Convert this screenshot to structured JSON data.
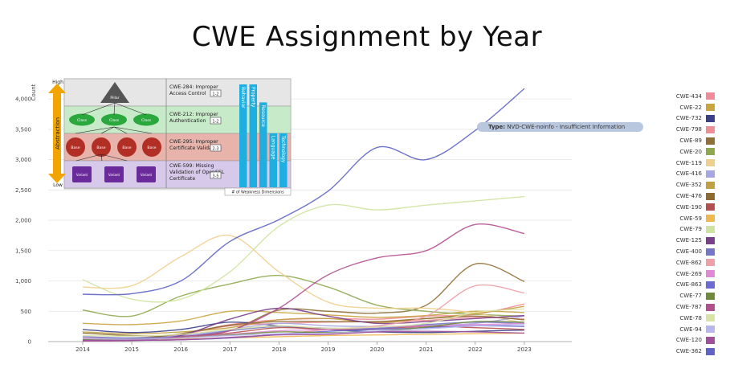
{
  "chart_data": {
    "type": "line",
    "title": "CWE Assignment by Year",
    "ylabel": "Count",
    "xlabel": "",
    "x": [
      2014,
      2015,
      2016,
      2017,
      2018,
      2019,
      2020,
      2021,
      2022,
      2023
    ],
    "ylim": [
      0,
      4200
    ],
    "yticks": [
      "0",
      "500",
      "1,000",
      "1,500",
      "2,000",
      "2,500",
      "3,000",
      "3,500",
      "4,000"
    ],
    "ytick_values": [
      0,
      500,
      1000,
      1500,
      2000,
      2500,
      3000,
      3500,
      4000
    ],
    "grid": true,
    "legend": "right",
    "tooltip": {
      "label": "Type:",
      "value": "NVD-CWE-noinfo - Insufficient Information"
    },
    "series": [
      {
        "name": "CWE-434",
        "color": "#f08a98",
        "values": [
          60,
          60,
          120,
          280,
          360,
          380,
          370,
          420,
          450,
          620
        ]
      },
      {
        "name": "CWE-22",
        "color": "#c9a43f",
        "values": [
          300,
          280,
          340,
          500,
          480,
          440,
          400,
          430,
          500,
          480
        ]
      },
      {
        "name": "CWE-732",
        "color": "#3a3f86",
        "values": [
          200,
          150,
          200,
          320,
          260,
          200,
          160,
          150,
          170,
          190
        ]
      },
      {
        "name": "CWE-798",
        "color": "#ee8f95",
        "values": [
          40,
          50,
          120,
          260,
          300,
          320,
          330,
          350,
          400,
          370
        ]
      },
      {
        "name": "CWE-89",
        "color": "#8f6f35",
        "values": [
          140,
          100,
          90,
          180,
          520,
          500,
          470,
          600,
          1280,
          990
        ]
      },
      {
        "name": "CWE-20",
        "color": "#8ea84f",
        "values": [
          520,
          420,
          750,
          950,
          1090,
          900,
          600,
          500,
          450,
          420
        ]
      },
      {
        "name": "CWE-119",
        "color": "#efcf8d",
        "values": [
          900,
          920,
          1400,
          1750,
          1150,
          650,
          550,
          550,
          470,
          300
        ]
      },
      {
        "name": "CWE-416",
        "color": "#a6a6e4",
        "values": [
          40,
          60,
          100,
          200,
          300,
          260,
          250,
          270,
          300,
          420
        ]
      },
      {
        "name": "CWE-352",
        "color": "#c2a040",
        "values": [
          160,
          130,
          160,
          230,
          360,
          380,
          310,
          380,
          460,
          580
        ]
      },
      {
        "name": "CWE-476",
        "color": "#8c6a30",
        "values": [
          30,
          40,
          130,
          270,
          330,
          330,
          330,
          380,
          420,
          360
        ]
      },
      {
        "name": "CWE-190",
        "color": "#b54f4f",
        "values": [
          30,
          40,
          60,
          140,
          230,
          200,
          210,
          250,
          230,
          200
        ]
      },
      {
        "name": "CWE-59",
        "color": "#efb84f",
        "values": [
          20,
          25,
          40,
          60,
          80,
          100,
          110,
          120,
          130,
          140
        ]
      },
      {
        "name": "CWE-79",
        "color": "#cfe3a0",
        "values": [
          1020,
          700,
          700,
          1150,
          1900,
          2250,
          2170,
          2250,
          2320,
          2390
        ]
      },
      {
        "name": "CWE-125",
        "color": "#7a3f8a",
        "values": [
          20,
          30,
          100,
          370,
          550,
          420,
          300,
          330,
          380,
          430
        ]
      },
      {
        "name": "CWE-400",
        "color": "#7676c8",
        "values": [
          80,
          60,
          80,
          180,
          250,
          220,
          220,
          280,
          320,
          300
        ]
      },
      {
        "name": "CWE-862",
        "color": "#ee9fa8",
        "values": [
          20,
          20,
          30,
          60,
          120,
          200,
          260,
          420,
          920,
          800
        ]
      },
      {
        "name": "CWE-269",
        "color": "#e089d4",
        "values": [
          40,
          40,
          60,
          120,
          180,
          200,
          240,
          260,
          280,
          300
        ]
      },
      {
        "name": "CWE-863",
        "color": "#6a6ad2",
        "values": [
          20,
          20,
          30,
          60,
          120,
          170,
          200,
          230,
          260,
          250
        ]
      },
      {
        "name": "CWE-77",
        "color": "#6f8a3a",
        "values": [
          40,
          40,
          60,
          110,
          160,
          150,
          170,
          240,
          330,
          320
        ]
      },
      {
        "name": "CWE-787",
        "color": "#b2508e",
        "values": [
          10,
          20,
          80,
          180,
          550,
          1100,
          1380,
          1500,
          1930,
          1780
        ]
      },
      {
        "name": "CWE-78",
        "color": "#d9e3a4",
        "values": [
          100,
          90,
          120,
          200,
          260,
          220,
          240,
          300,
          480,
          540
        ]
      },
      {
        "name": "CWE-94",
        "color": "#b7b7ee",
        "values": [
          50,
          40,
          60,
          100,
          130,
          140,
          170,
          210,
          260,
          280
        ]
      },
      {
        "name": "CWE-120",
        "color": "#a04f9a",
        "values": [
          20,
          20,
          30,
          70,
          110,
          120,
          160,
          170,
          160,
          140
        ]
      },
      {
        "name": "CWE-362",
        "color": "#5f64c4",
        "values": [
          780,
          790,
          1000,
          1650,
          2010,
          2480,
          3200,
          3000,
          3480,
          4170
        ]
      }
    ]
  },
  "inset": {
    "abstraction_label": "Abstraction",
    "high_label": "High",
    "low_label": "Low",
    "rows": [
      {
        "text_lines": [
          "CWE-284: Improper",
          "Access Control"
        ],
        "range": "1-2",
        "bg": "#e6e6e6",
        "node_color": "#555555",
        "nodes": [
          "Pillar"
        ]
      },
      {
        "text_lines": [
          "CWE-212: Improper",
          "Authentication"
        ],
        "range": "1-2",
        "bg": "#c7ebc8",
        "node_color": "#2aa83d",
        "nodes": [
          "Class",
          "Class",
          "Class"
        ]
      },
      {
        "text_lines": [
          "CWE-295: Improper",
          "Certificate Validation"
        ],
        "range": "2-3",
        "bg": "#e7b3ab",
        "node_color": "#b12f24",
        "nodes": [
          "Base",
          "Base",
          "Base",
          "Base"
        ]
      },
      {
        "text_lines": [
          "CWE-599: Missing",
          "Validation of OpenSSL",
          "Certificate"
        ],
        "range": "3-5",
        "bg": "#d7c9ea",
        "node_color": "#6b2a9a",
        "nodes": [
          "Variant",
          "Variant",
          "Variant"
        ]
      }
    ],
    "bars": [
      {
        "label": "Behavior",
        "value": 4
      },
      {
        "label": "Property",
        "value": 4
      },
      {
        "label": "Resource",
        "value": 3.3
      },
      {
        "label": "Language",
        "value": 2.1
      },
      {
        "label": "Technology",
        "value": 2.1
      }
    ],
    "bar_caption": "# of Weakness Dimensions",
    "bar_color": "#1eaee0"
  }
}
